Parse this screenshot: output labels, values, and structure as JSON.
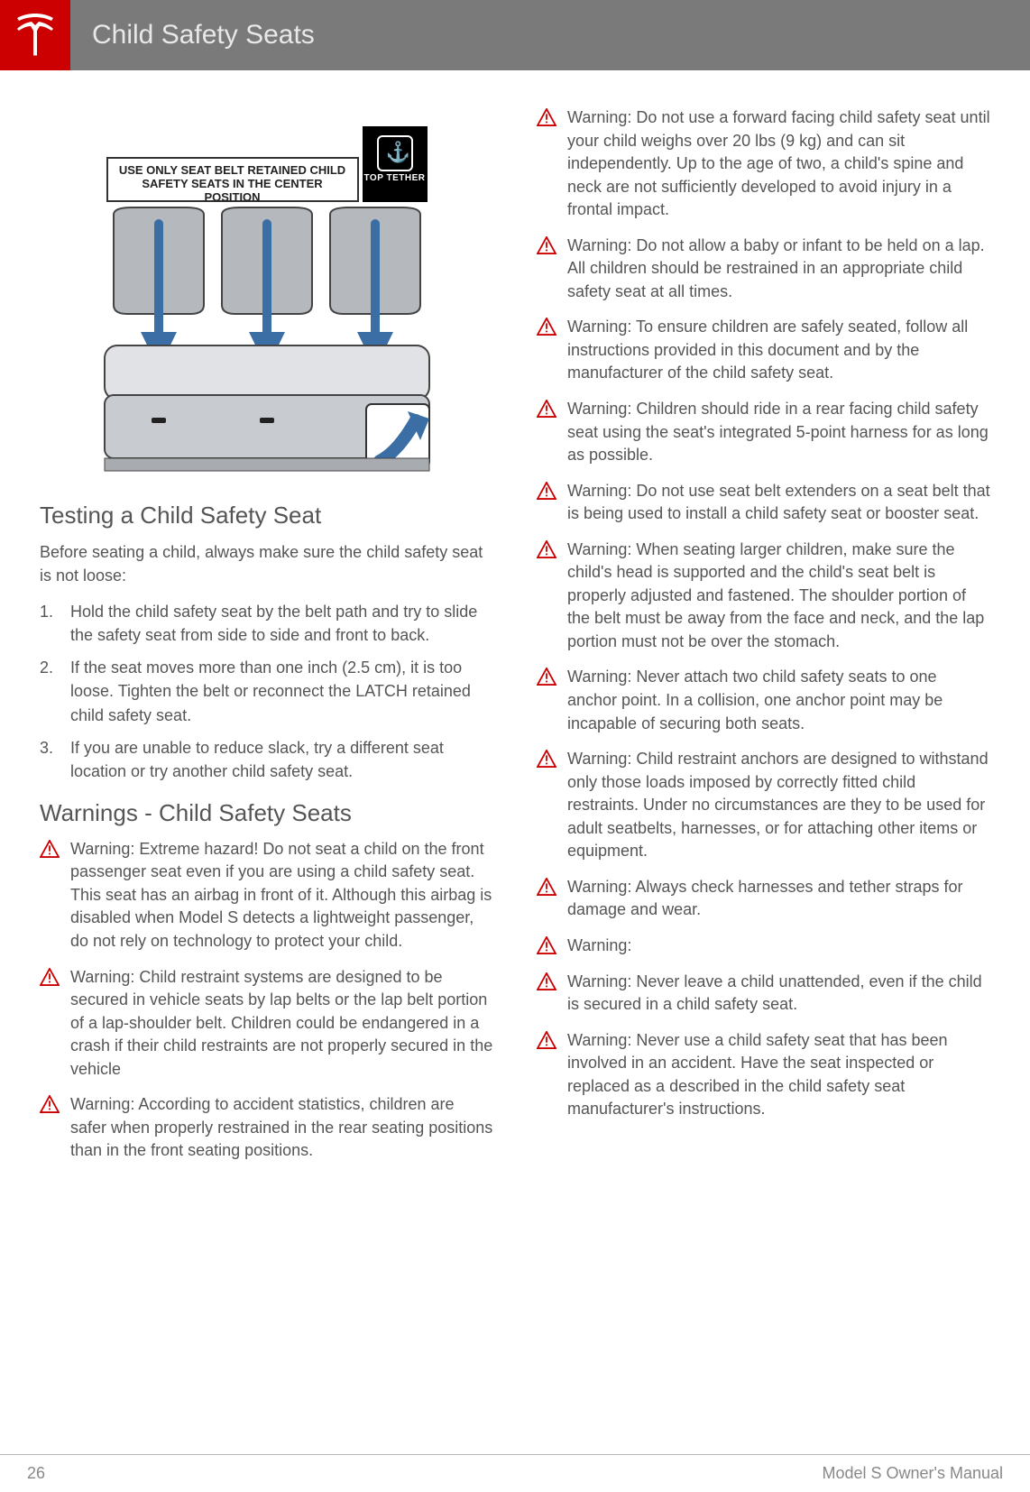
{
  "header": {
    "title": "Child Safety Seats"
  },
  "diagram": {
    "label": "USE ONLY SEAT BELT RETAINED CHILD SAFETY SEATS IN THE CENTER POSITION",
    "tether_label": "TOP TETHER"
  },
  "sections": {
    "testing": {
      "title": "Testing a Child Safety Seat",
      "intro": "Before seating a child, always make sure the child safety seat is not loose:",
      "steps": [
        "Hold the child safety seat by the belt path and try to slide the safety seat from side to side and front to back.",
        "If the seat moves more than one inch (2.5 cm), it is too loose. Tighten the belt or reconnect the LATCH retained child safety seat.",
        "If you are unable to reduce slack, try a different seat location or try another child safety seat."
      ]
    },
    "warnings": {
      "title": "Warnings - Child Safety Seats",
      "items_left": [
        "Warning: Extreme hazard! Do not seat a child on the front passenger seat even if you are using a child safety seat. This seat has an airbag in front of it. Although this airbag is disabled when Model S detects a lightweight passenger, do not rely on technology to protect your child.",
        "Warning: Child restraint systems are designed to be secured in vehicle seats by lap belts or the lap belt portion of a lap-shoulder belt. Children could be endangered in a crash if their child restraints are not properly secured in the vehicle",
        "Warning: According to accident statistics, children are safer when properly restrained in the rear seating positions than in the front seating positions."
      ],
      "items_right": [
        "Warning: Do not use a forward facing child safety seat until your child weighs over 20 lbs (9 kg) and can sit independently. Up to the age of two, a child's spine and neck are not sufficiently developed to avoid injury in a frontal impact.",
        "Warning: Do not allow a baby or infant to be held on a lap. All children should be restrained in an appropriate child safety seat at all times.",
        "Warning: To ensure children are safely seated, follow all instructions provided in this document and by the manufacturer of the child safety seat.",
        "Warning: Children should ride in a rear facing child safety seat using the seat's integrated 5-point harness for as long as possible.",
        "Warning: Do not use seat belt extenders on a seat belt that is being used to install a child safety seat or booster seat.",
        "Warning: When seating larger children, make sure the child's head is supported and the child's seat belt is properly adjusted and fastened. The shoulder portion of the belt must be away from the face and neck, and the lap portion must not be over the stomach.",
        "Warning: Never attach two child safety seats to one anchor point. In a collision, one anchor point may be incapable of securing both seats.",
        "Warning: Child restraint anchors are designed to withstand only those loads imposed by correctly fitted child restraints. Under no circumstances are they to be used for adult seatbelts, harnesses, or for attaching other items or equipment.",
        "Warning: Always check harnesses and tether straps for damage and wear.",
        "Warning:",
        "Warning: Never leave a child unattended, even if the child is secured in a child safety seat.",
        "Warning: Never use a child safety seat that has been involved in an accident. Have the seat inspected or replaced as a described in the child safety seat manufacturer's instructions."
      ]
    }
  },
  "footer": {
    "page": "26",
    "manual": "Model S Owner's Manual"
  },
  "colors": {
    "brand_red": "#cc0000",
    "header_gray": "#7a7a7a",
    "text": "#555555",
    "warn_stroke": "#cc0000",
    "warn_fill": "#ffffff"
  }
}
